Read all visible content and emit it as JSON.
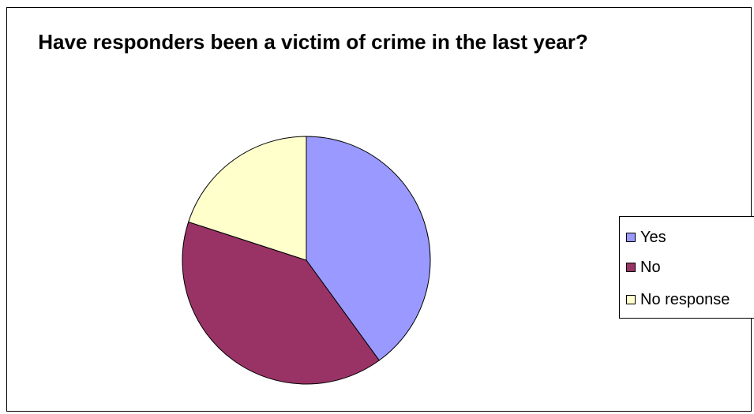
{
  "chart_data": {
    "type": "pie",
    "title": "Have responders been a victim of crime in the last year?",
    "categories": [
      "Yes",
      "No",
      "No response"
    ],
    "values": [
      40,
      40,
      20
    ],
    "colors": [
      "#9999ff",
      "#993366",
      "#ffffcc"
    ],
    "start_angle_deg": 0,
    "direction": "clockwise",
    "legend_position": "right"
  }
}
